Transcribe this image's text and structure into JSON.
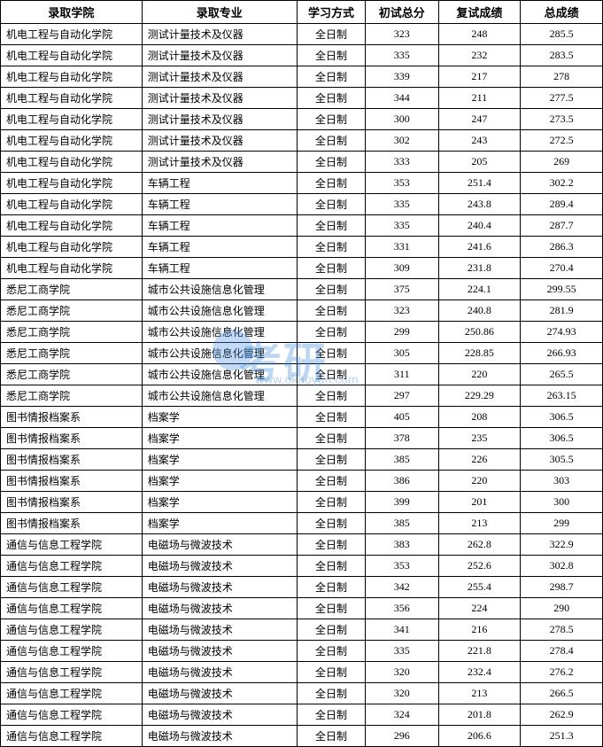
{
  "header": {
    "college": "录取学院",
    "major": "录取专业",
    "mode": "学习方式",
    "initial": "初试总分",
    "retest": "复试成绩",
    "total": "总成绩"
  },
  "columnWidths": {
    "college": 155,
    "major": 170,
    "mode": 75,
    "initial": 80,
    "retest": 90,
    "total": 90
  },
  "colors": {
    "border": "#000000",
    "background": "#ffffff",
    "text": "#000000",
    "watermark": "rgba(64,140,220,0.35)"
  },
  "watermark": {
    "text": "考研",
    "url": "www.okaoyan.com"
  },
  "rows": [
    {
      "college": "机电工程与自动化学院",
      "major": "测试计量技术及仪器",
      "mode": "全日制",
      "initial": "323",
      "retest": "248",
      "total": "285.5"
    },
    {
      "college": "机电工程与自动化学院",
      "major": "测试计量技术及仪器",
      "mode": "全日制",
      "initial": "335",
      "retest": "232",
      "total": "283.5"
    },
    {
      "college": "机电工程与自动化学院",
      "major": "测试计量技术及仪器",
      "mode": "全日制",
      "initial": "339",
      "retest": "217",
      "total": "278"
    },
    {
      "college": "机电工程与自动化学院",
      "major": "测试计量技术及仪器",
      "mode": "全日制",
      "initial": "344",
      "retest": "211",
      "total": "277.5"
    },
    {
      "college": "机电工程与自动化学院",
      "major": "测试计量技术及仪器",
      "mode": "全日制",
      "initial": "300",
      "retest": "247",
      "total": "273.5"
    },
    {
      "college": "机电工程与自动化学院",
      "major": "测试计量技术及仪器",
      "mode": "全日制",
      "initial": "302",
      "retest": "243",
      "total": "272.5"
    },
    {
      "college": "机电工程与自动化学院",
      "major": "测试计量技术及仪器",
      "mode": "全日制",
      "initial": "333",
      "retest": "205",
      "total": "269"
    },
    {
      "college": "机电工程与自动化学院",
      "major": "车辆工程",
      "mode": "全日制",
      "initial": "353",
      "retest": "251.4",
      "total": "302.2"
    },
    {
      "college": "机电工程与自动化学院",
      "major": "车辆工程",
      "mode": "全日制",
      "initial": "335",
      "retest": "243.8",
      "total": "289.4"
    },
    {
      "college": "机电工程与自动化学院",
      "major": "车辆工程",
      "mode": "全日制",
      "initial": "335",
      "retest": "240.4",
      "total": "287.7"
    },
    {
      "college": "机电工程与自动化学院",
      "major": "车辆工程",
      "mode": "全日制",
      "initial": "331",
      "retest": "241.6",
      "total": "286.3"
    },
    {
      "college": "机电工程与自动化学院",
      "major": "车辆工程",
      "mode": "全日制",
      "initial": "309",
      "retest": "231.8",
      "total": "270.4"
    },
    {
      "college": "悉尼工商学院",
      "major": "城市公共设施信息化管理",
      "mode": "全日制",
      "initial": "375",
      "retest": "224.1",
      "total": "299.55"
    },
    {
      "college": "悉尼工商学院",
      "major": "城市公共设施信息化管理",
      "mode": "全日制",
      "initial": "323",
      "retest": "240.8",
      "total": "281.9"
    },
    {
      "college": "悉尼工商学院",
      "major": "城市公共设施信息化管理",
      "mode": "全日制",
      "initial": "299",
      "retest": "250.86",
      "total": "274.93"
    },
    {
      "college": "悉尼工商学院",
      "major": "城市公共设施信息化管理",
      "mode": "全日制",
      "initial": "305",
      "retest": "228.85",
      "total": "266.93"
    },
    {
      "college": "悉尼工商学院",
      "major": "城市公共设施信息化管理",
      "mode": "全日制",
      "initial": "311",
      "retest": "220",
      "total": "265.5"
    },
    {
      "college": "悉尼工商学院",
      "major": "城市公共设施信息化管理",
      "mode": "全日制",
      "initial": "297",
      "retest": "229.29",
      "total": "263.15"
    },
    {
      "college": "图书情报档案系",
      "major": "档案学",
      "mode": "全日制",
      "initial": "405",
      "retest": "208",
      "total": "306.5"
    },
    {
      "college": "图书情报档案系",
      "major": "档案学",
      "mode": "全日制",
      "initial": "378",
      "retest": "235",
      "total": "306.5"
    },
    {
      "college": "图书情报档案系",
      "major": "档案学",
      "mode": "全日制",
      "initial": "385",
      "retest": "226",
      "total": "305.5"
    },
    {
      "college": "图书情报档案系",
      "major": "档案学",
      "mode": "全日制",
      "initial": "386",
      "retest": "220",
      "total": "303"
    },
    {
      "college": "图书情报档案系",
      "major": "档案学",
      "mode": "全日制",
      "initial": "399",
      "retest": "201",
      "total": "300"
    },
    {
      "college": "图书情报档案系",
      "major": "档案学",
      "mode": "全日制",
      "initial": "385",
      "retest": "213",
      "total": "299"
    },
    {
      "college": "通信与信息工程学院",
      "major": "电磁场与微波技术",
      "mode": "全日制",
      "initial": "383",
      "retest": "262.8",
      "total": "322.9"
    },
    {
      "college": "通信与信息工程学院",
      "major": "电磁场与微波技术",
      "mode": "全日制",
      "initial": "353",
      "retest": "252.6",
      "total": "302.8"
    },
    {
      "college": "通信与信息工程学院",
      "major": "电磁场与微波技术",
      "mode": "全日制",
      "initial": "342",
      "retest": "255.4",
      "total": "298.7"
    },
    {
      "college": "通信与信息工程学院",
      "major": "电磁场与微波技术",
      "mode": "全日制",
      "initial": "356",
      "retest": "224",
      "total": "290"
    },
    {
      "college": "通信与信息工程学院",
      "major": "电磁场与微波技术",
      "mode": "全日制",
      "initial": "341",
      "retest": "216",
      "total": "278.5"
    },
    {
      "college": "通信与信息工程学院",
      "major": "电磁场与微波技术",
      "mode": "全日制",
      "initial": "335",
      "retest": "221.8",
      "total": "278.4"
    },
    {
      "college": "通信与信息工程学院",
      "major": "电磁场与微波技术",
      "mode": "全日制",
      "initial": "320",
      "retest": "232.4",
      "total": "276.2"
    },
    {
      "college": "通信与信息工程学院",
      "major": "电磁场与微波技术",
      "mode": "全日制",
      "initial": "320",
      "retest": "213",
      "total": "266.5"
    },
    {
      "college": "通信与信息工程学院",
      "major": "电磁场与微波技术",
      "mode": "全日制",
      "initial": "324",
      "retest": "201.8",
      "total": "262.9"
    },
    {
      "college": "通信与信息工程学院",
      "major": "电磁场与微波技术",
      "mode": "全日制",
      "initial": "296",
      "retest": "206.6",
      "total": "251.3"
    }
  ]
}
